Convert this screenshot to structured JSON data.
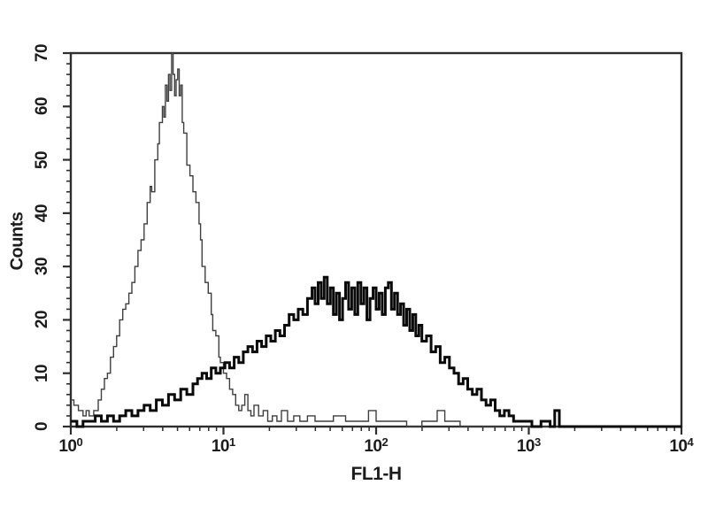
{
  "figure": {
    "background": "#ffffff",
    "axis_color": "#2e2e2e",
    "label_color": "#1c1c1c"
  },
  "chart_data": {
    "type": "line",
    "kind": "flow-cytometry-histogram-overlay",
    "title": "",
    "xlabel": "FL1-H",
    "ylabel": "Counts",
    "x_scale": "log10",
    "x_range_log": [
      0,
      4
    ],
    "x_tick_labels": [
      {
        "base": "10",
        "exp": "0"
      },
      {
        "base": "10",
        "exp": "1"
      },
      {
        "base": "10",
        "exp": "2"
      },
      {
        "base": "10",
        "exp": "3"
      },
      {
        "base": "10",
        "exp": "4"
      }
    ],
    "ylim": [
      0,
      70
    ],
    "y_ticks": [
      0,
      10,
      20,
      30,
      40,
      50,
      60,
      70
    ],
    "y_minor_step": 2,
    "grid": false,
    "legend": "none",
    "series": [
      {
        "name": "thin-histogram",
        "style": "thin-outline",
        "color": "#3f3f3f",
        "stroke_width": 1.4,
        "points_log_counts": [
          [
            0,
            5
          ],
          [
            0.02,
            4
          ],
          [
            0.05,
            3
          ],
          [
            0.08,
            2
          ],
          [
            0.1,
            3
          ],
          [
            0.12,
            2
          ],
          [
            0.15,
            3
          ],
          [
            0.18,
            5
          ],
          [
            0.2,
            7
          ],
          [
            0.22,
            9
          ],
          [
            0.24,
            10
          ],
          [
            0.26,
            13
          ],
          [
            0.28,
            15
          ],
          [
            0.3,
            17
          ],
          [
            0.32,
            20
          ],
          [
            0.34,
            22
          ],
          [
            0.36,
            23
          ],
          [
            0.38,
            25
          ],
          [
            0.4,
            27
          ],
          [
            0.42,
            30
          ],
          [
            0.44,
            33
          ],
          [
            0.46,
            35
          ],
          [
            0.48,
            38
          ],
          [
            0.5,
            42
          ],
          [
            0.52,
            45
          ],
          [
            0.53,
            44
          ],
          [
            0.55,
            50
          ],
          [
            0.57,
            53
          ],
          [
            0.58,
            57
          ],
          [
            0.6,
            60
          ],
          [
            0.61,
            58
          ],
          [
            0.62,
            64
          ],
          [
            0.63,
            61
          ],
          [
            0.64,
            66
          ],
          [
            0.65,
            63
          ],
          [
            0.66,
            70
          ],
          [
            0.67,
            66
          ],
          [
            0.68,
            62
          ],
          [
            0.69,
            65
          ],
          [
            0.7,
            67
          ],
          [
            0.71,
            62
          ],
          [
            0.72,
            64
          ],
          [
            0.73,
            57
          ],
          [
            0.74,
            55
          ],
          [
            0.76,
            49
          ],
          [
            0.78,
            47
          ],
          [
            0.8,
            44
          ],
          [
            0.82,
            42
          ],
          [
            0.84,
            38
          ],
          [
            0.85,
            35
          ],
          [
            0.86,
            30
          ],
          [
            0.88,
            27
          ],
          [
            0.9,
            25
          ],
          [
            0.92,
            21
          ],
          [
            0.93,
            18
          ],
          [
            0.95,
            17
          ],
          [
            0.97,
            13
          ],
          [
            0.98,
            12
          ],
          [
            1,
            10
          ],
          [
            1.02,
            9
          ],
          [
            1.04,
            7
          ],
          [
            1.06,
            6
          ],
          [
            1.08,
            4
          ],
          [
            1.1,
            3
          ],
          [
            1.12,
            4
          ],
          [
            1.14,
            6
          ],
          [
            1.16,
            3
          ],
          [
            1.18,
            2
          ],
          [
            1.2,
            4
          ],
          [
            1.23,
            2
          ],
          [
            1.26,
            3
          ],
          [
            1.29,
            1
          ],
          [
            1.32,
            2
          ],
          [
            1.35,
            1
          ],
          [
            1.38,
            3
          ],
          [
            1.42,
            1
          ],
          [
            1.46,
            2
          ],
          [
            1.5,
            1
          ],
          [
            1.55,
            2
          ],
          [
            1.6,
            1
          ],
          [
            1.65,
            1
          ],
          [
            1.72,
            2
          ],
          [
            1.8,
            1
          ],
          [
            1.88,
            1
          ],
          [
            1.95,
            3
          ],
          [
            2,
            1
          ],
          [
            2.1,
            1
          ],
          [
            2.2,
            0
          ],
          [
            2.3,
            1
          ],
          [
            2.4,
            3
          ],
          [
            2.45,
            1
          ],
          [
            2.55,
            0
          ],
          [
            3,
            0
          ],
          [
            4,
            0
          ]
        ]
      },
      {
        "name": "thick-histogram",
        "style": "bold-outline",
        "color": "#0a0a0a",
        "stroke_width": 3,
        "points_log_counts": [
          [
            0,
            1
          ],
          [
            0.04,
            0
          ],
          [
            0.08,
            1
          ],
          [
            0.12,
            1
          ],
          [
            0.16,
            2
          ],
          [
            0.2,
            1
          ],
          [
            0.24,
            2
          ],
          [
            0.28,
            1
          ],
          [
            0.32,
            2
          ],
          [
            0.36,
            3
          ],
          [
            0.4,
            2
          ],
          [
            0.44,
            3
          ],
          [
            0.48,
            4
          ],
          [
            0.52,
            3
          ],
          [
            0.56,
            5
          ],
          [
            0.6,
            4
          ],
          [
            0.64,
            6
          ],
          [
            0.68,
            5
          ],
          [
            0.72,
            7
          ],
          [
            0.76,
            6
          ],
          [
            0.8,
            8
          ],
          [
            0.83,
            9
          ],
          [
            0.86,
            10
          ],
          [
            0.89,
            9
          ],
          [
            0.92,
            11
          ],
          [
            0.95,
            10
          ],
          [
            0.98,
            11
          ],
          [
            1.01,
            12
          ],
          [
            1.04,
            11
          ],
          [
            1.07,
            13
          ],
          [
            1.1,
            12
          ],
          [
            1.13,
            14
          ],
          [
            1.16,
            15
          ],
          [
            1.19,
            14
          ],
          [
            1.22,
            16
          ],
          [
            1.25,
            15
          ],
          [
            1.28,
            17
          ],
          [
            1.31,
            16
          ],
          [
            1.34,
            18
          ],
          [
            1.37,
            17
          ],
          [
            1.4,
            19
          ],
          [
            1.43,
            21
          ],
          [
            1.46,
            20
          ],
          [
            1.49,
            22
          ],
          [
            1.52,
            21
          ],
          [
            1.55,
            24
          ],
          [
            1.58,
            26
          ],
          [
            1.6,
            23
          ],
          [
            1.62,
            27
          ],
          [
            1.64,
            24
          ],
          [
            1.66,
            28
          ],
          [
            1.68,
            23
          ],
          [
            1.7,
            26
          ],
          [
            1.72,
            21
          ],
          [
            1.74,
            25
          ],
          [
            1.76,
            20
          ],
          [
            1.78,
            24
          ],
          [
            1.8,
            27
          ],
          [
            1.82,
            22
          ],
          [
            1.84,
            26
          ],
          [
            1.86,
            21
          ],
          [
            1.88,
            27
          ],
          [
            1.9,
            23
          ],
          [
            1.92,
            26
          ],
          [
            1.94,
            20
          ],
          [
            1.96,
            24
          ],
          [
            1.98,
            26
          ],
          [
            2,
            22
          ],
          [
            2.02,
            25
          ],
          [
            2.04,
            21
          ],
          [
            2.06,
            26
          ],
          [
            2.08,
            27
          ],
          [
            2.1,
            22
          ],
          [
            2.12,
            25
          ],
          [
            2.14,
            21
          ],
          [
            2.16,
            23
          ],
          [
            2.18,
            19
          ],
          [
            2.2,
            22
          ],
          [
            2.22,
            18
          ],
          [
            2.24,
            21
          ],
          [
            2.26,
            17
          ],
          [
            2.28,
            19
          ],
          [
            2.3,
            16
          ],
          [
            2.33,
            17
          ],
          [
            2.36,
            14
          ],
          [
            2.39,
            15
          ],
          [
            2.42,
            12
          ],
          [
            2.45,
            13
          ],
          [
            2.48,
            11
          ],
          [
            2.51,
            10
          ],
          [
            2.54,
            8
          ],
          [
            2.57,
            9
          ],
          [
            2.6,
            7
          ],
          [
            2.63,
            6
          ],
          [
            2.66,
            7
          ],
          [
            2.69,
            5
          ],
          [
            2.72,
            4
          ],
          [
            2.75,
            5
          ],
          [
            2.78,
            3
          ],
          [
            2.81,
            2
          ],
          [
            2.84,
            3
          ],
          [
            2.87,
            2
          ],
          [
            2.9,
            1
          ],
          [
            2.94,
            1
          ],
          [
            2.98,
            1
          ],
          [
            3.02,
            0
          ],
          [
            3.08,
            1
          ],
          [
            3.14,
            0
          ],
          [
            3.17,
            3
          ],
          [
            3.2,
            0
          ],
          [
            3.5,
            0
          ],
          [
            4,
            0
          ]
        ]
      }
    ]
  }
}
